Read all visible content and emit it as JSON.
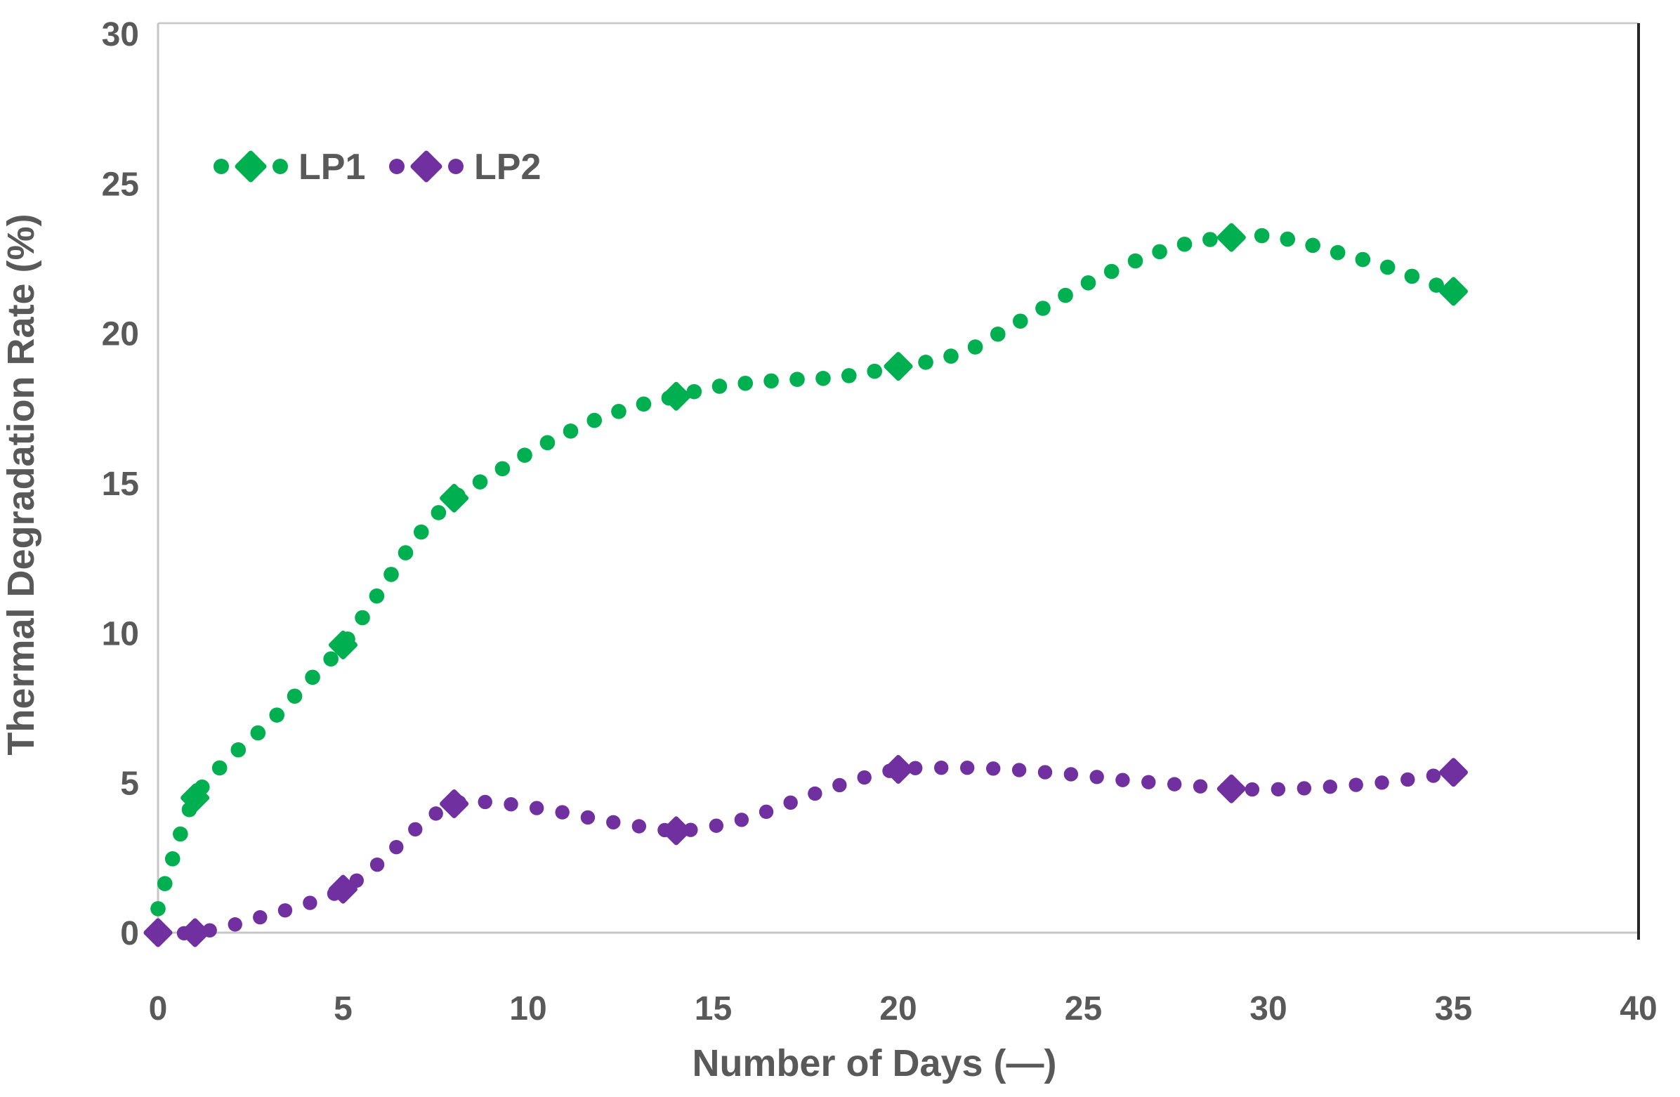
{
  "figure": {
    "background": "#ffffff",
    "text_color": "#595959",
    "axis_line_color": "#C6C6C6",
    "right_border_color": "#262626"
  },
  "chart_data": {
    "type": "line",
    "title": "",
    "xlabel": "Number of Days (—)",
    "ylabel": "Thermal Degradation Rate (%)",
    "xlim": [
      0,
      40
    ],
    "ylim": [
      0,
      30
    ],
    "x_ticks": [
      0,
      5,
      10,
      15,
      20,
      25,
      30,
      35,
      40
    ],
    "y_ticks": [
      0,
      5,
      10,
      15,
      20,
      25,
      30
    ],
    "grid": false,
    "legend_position": "inside-top-left",
    "line_style": "round-dotted-curve-with-diamond-markers",
    "series": [
      {
        "name": "LP1",
        "color": "#00B050",
        "dot_radius": 10.8,
        "diamond_size": 17,
        "curve": [
          [
            0,
            0.8
          ],
          [
            0.35,
            2.3
          ],
          [
            1,
            4.5
          ],
          [
            2,
            5.9
          ],
          [
            3,
            7.0
          ],
          [
            4,
            8.3
          ],
          [
            5,
            9.6
          ],
          [
            6,
            11.4
          ],
          [
            7,
            13.2
          ],
          [
            8,
            14.5
          ],
          [
            9,
            15.25
          ],
          [
            10,
            16.0
          ],
          [
            11,
            16.65
          ],
          [
            12,
            17.2
          ],
          [
            13,
            17.6
          ],
          [
            14,
            17.9
          ],
          [
            15,
            18.2
          ],
          [
            16,
            18.35
          ],
          [
            17,
            18.45
          ],
          [
            18,
            18.5
          ],
          [
            19,
            18.65
          ],
          [
            20,
            18.9
          ],
          [
            21,
            19.1
          ],
          [
            22,
            19.5
          ],
          [
            23,
            20.2
          ],
          [
            24,
            20.9
          ],
          [
            25,
            21.6
          ],
          [
            26,
            22.2
          ],
          [
            27,
            22.7
          ],
          [
            28,
            23.05
          ],
          [
            29,
            23.2
          ],
          [
            30,
            23.25
          ],
          [
            31,
            23.0
          ],
          [
            32,
            22.65
          ],
          [
            33,
            22.3
          ],
          [
            34,
            21.85
          ],
          [
            35,
            21.4
          ]
        ],
        "markers": [
          [
            1,
            4.5
          ],
          [
            5,
            9.6
          ],
          [
            8,
            14.5
          ],
          [
            14,
            17.9
          ],
          [
            20,
            18.9
          ],
          [
            29,
            23.2
          ],
          [
            35,
            21.4
          ]
        ]
      },
      {
        "name": "LP2",
        "color": "#7030A0",
        "dot_radius": 10.2,
        "diamond_size": 17,
        "curve": [
          [
            0,
            0
          ],
          [
            1,
            0
          ],
          [
            2,
            0.25
          ],
          [
            3,
            0.6
          ],
          [
            4,
            0.95
          ],
          [
            5,
            1.45
          ],
          [
            6,
            2.35
          ],
          [
            7,
            3.5
          ],
          [
            8,
            4.3
          ],
          [
            9,
            4.35
          ],
          [
            10,
            4.2
          ],
          [
            11,
            4.0
          ],
          [
            12,
            3.75
          ],
          [
            13,
            3.55
          ],
          [
            14,
            3.4
          ],
          [
            15,
            3.55
          ],
          [
            16,
            3.85
          ],
          [
            17,
            4.3
          ],
          [
            18,
            4.75
          ],
          [
            19,
            5.15
          ],
          [
            20,
            5.45
          ],
          [
            21,
            5.5
          ],
          [
            22,
            5.5
          ],
          [
            23,
            5.45
          ],
          [
            24,
            5.35
          ],
          [
            25,
            5.25
          ],
          [
            26,
            5.1
          ],
          [
            27,
            5.0
          ],
          [
            28,
            4.9
          ],
          [
            29,
            4.8
          ],
          [
            30,
            4.78
          ],
          [
            31,
            4.82
          ],
          [
            32,
            4.9
          ],
          [
            33,
            5.0
          ],
          [
            34,
            5.15
          ],
          [
            35,
            5.35
          ]
        ],
        "markers": [
          [
            0,
            0
          ],
          [
            1,
            0
          ],
          [
            5,
            1.45
          ],
          [
            8,
            4.3
          ],
          [
            14,
            3.4
          ],
          [
            20,
            5.45
          ],
          [
            29,
            4.8
          ],
          [
            35,
            5.35
          ]
        ]
      }
    ]
  }
}
